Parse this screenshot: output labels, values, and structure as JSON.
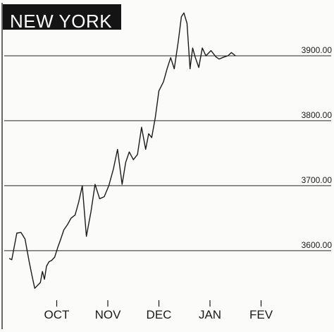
{
  "chart_data": {
    "type": "line",
    "title": "NEW YORK",
    "xlabel": "",
    "ylabel": "",
    "x_tick_labels": [
      "OCT",
      "NOV",
      "DEC",
      "JAN",
      "FEV"
    ],
    "y_tick_labels": [
      "3900.00",
      "3800.00",
      "3700.00",
      "3600.00"
    ],
    "y_ticks": [
      3900,
      3800,
      3700,
      3600
    ],
    "ylim": [
      3515,
      3975
    ],
    "grid": "horizontal",
    "legend": "none",
    "line_color": "#1a1a1a",
    "series": [
      {
        "x_month_positions": [
          0.07,
          0.12,
          0.22,
          0.3,
          0.38,
          0.46,
          0.52,
          0.57,
          0.63,
          0.68,
          0.72,
          0.76,
          0.8,
          0.85,
          0.9,
          0.96,
          1.02,
          1.08,
          1.14,
          1.21,
          1.28,
          1.36,
          1.43,
          1.5,
          1.58,
          1.67,
          1.75,
          1.84,
          1.93,
          2.02,
          2.11,
          2.19,
          2.28,
          2.35,
          2.42,
          2.5,
          2.58,
          2.66,
          2.74,
          2.8,
          2.86,
          2.93,
          3.0,
          3.09,
          3.16,
          3.23,
          3.3,
          3.38,
          3.44,
          3.49,
          3.55,
          3.61,
          3.66,
          3.71,
          3.78,
          3.85,
          3.92,
          4.02,
          4.12,
          4.18,
          4.27,
          4.35,
          4.42,
          4.5
        ],
        "values": [
          3588,
          3586,
          3627,
          3628,
          3618,
          3583,
          3560,
          3542,
          3547,
          3551,
          3568,
          3556,
          3576,
          3583,
          3585,
          3590,
          3605,
          3618,
          3632,
          3640,
          3650,
          3655,
          3675,
          3700,
          3622,
          3660,
          3702,
          3680,
          3683,
          3700,
          3726,
          3756,
          3702,
          3736,
          3752,
          3740,
          3748,
          3790,
          3756,
          3780,
          3774,
          3805,
          3846,
          3860,
          3880,
          3897,
          3880,
          3922,
          3960,
          3966,
          3950,
          3880,
          3912,
          3898,
          3882,
          3912,
          3900,
          3908,
          3898,
          3895,
          3898,
          3900,
          3905,
          3900
        ]
      }
    ]
  }
}
